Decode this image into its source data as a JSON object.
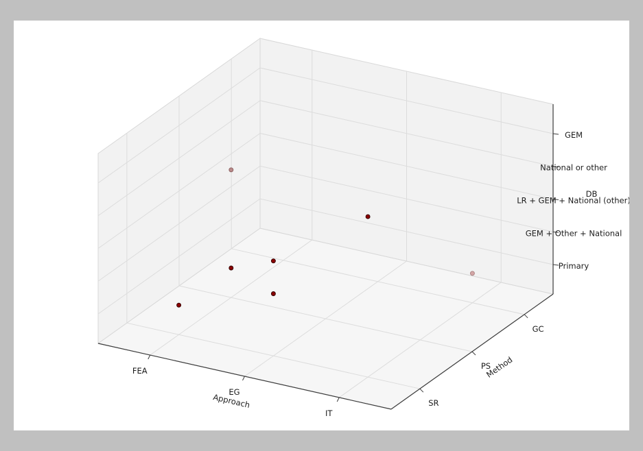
{
  "figure": {
    "outer_background": "#c0c0c0",
    "canvas_background": "#ffffff"
  },
  "chart_data": {
    "type": "scatter",
    "projection": "3d",
    "title": "",
    "grid": true,
    "legend": null,
    "axes": {
      "x": {
        "label": "Approach",
        "categories": [
          "FEA",
          "EG",
          "IT"
        ]
      },
      "y": {
        "label": "Method",
        "categories": [
          "SR",
          "PS",
          "GC"
        ]
      },
      "z": {
        "label": "DB",
        "categories": [
          "Primary",
          "GEM + Other + National",
          "LR + GEM + National (other)",
          "National or other",
          "GEM"
        ]
      }
    },
    "points": [
      {
        "approach": "FEA",
        "method": "SR",
        "db": "Primary",
        "color": "#8b0000",
        "edge": "#2f0000"
      },
      {
        "approach": "FEA",
        "method": "PS",
        "db": "Primary",
        "color": "#8b0000",
        "edge": "#2f0000"
      },
      {
        "approach": "FEA",
        "method": "PS",
        "db": "National or other",
        "color": "#b98a8a",
        "edge": "#8a5f5f"
      },
      {
        "approach": "EG",
        "method": "SR",
        "db": "GEM + Other + National",
        "color": "#8b0000",
        "edge": "#2f0000"
      },
      {
        "approach": "EG",
        "method": "SR",
        "db": "LR + GEM + National (other)",
        "color": "#8b0000",
        "edge": "#2f0000"
      },
      {
        "approach": "IT",
        "method": "SR",
        "db": "GEM",
        "color": "#8b0000",
        "edge": "#2f0000"
      },
      {
        "approach": "IT",
        "method": "GC",
        "db": "Primary",
        "color": "#d4a7a7",
        "edge": "#a87f7f"
      }
    ],
    "style": {
      "pane_color": "#f2f2f2",
      "floor_color": "#f6f6f6",
      "pane_edge_color": "#d8d8d8",
      "grid_color": "#dcdcdc",
      "axis_line_color": "#3c3c3c",
      "text_color": "#1c1c1c"
    }
  }
}
